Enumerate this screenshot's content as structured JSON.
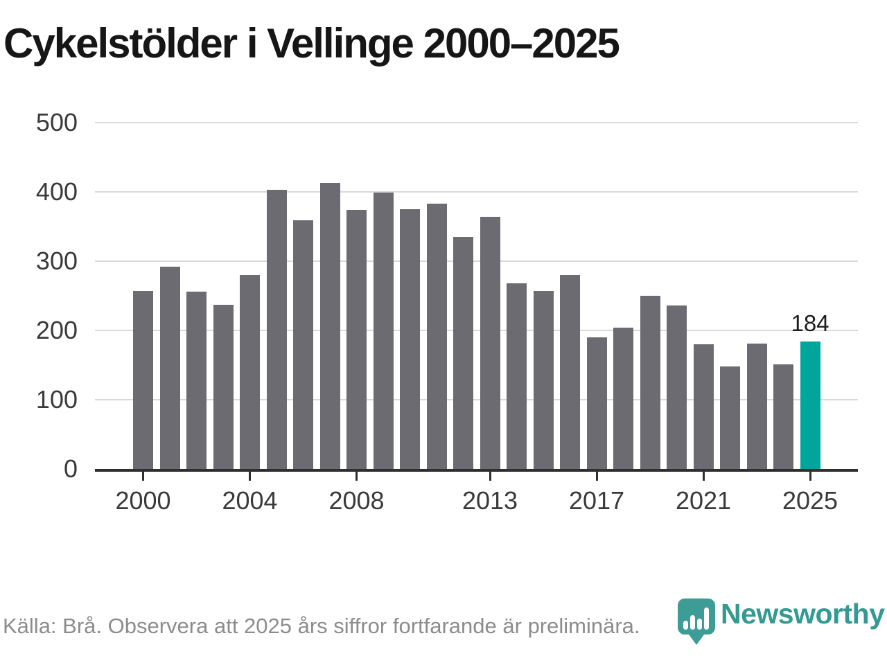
{
  "title": "Cykelstölder i Vellinge 2000–2025",
  "footer": {
    "source_text": "Källa: Brå. Observera att 2025 års siffror fortfarande är preliminära.",
    "logo_text": "Newsworthy"
  },
  "colors": {
    "bar": "#6b6b71",
    "highlight": "#00a59b",
    "grid": "#d9d9d9",
    "axis": "#2f2f2f",
    "tick_label": "#3a3a3a",
    "title": "#161616",
    "value_label": "#1d1d1d",
    "source_text": "#8c8c8c",
    "logo_mark": "#3d9d96",
    "logo_text": "#339a92",
    "background": "#ffffff"
  },
  "chart_data": {
    "type": "bar",
    "title": "Cykelstölder i Vellinge 2000–2025",
    "x": [
      2000,
      2001,
      2002,
      2003,
      2004,
      2005,
      2006,
      2007,
      2008,
      2009,
      2010,
      2011,
      2012,
      2013,
      2014,
      2015,
      2016,
      2017,
      2018,
      2019,
      2020,
      2021,
      2022,
      2023,
      2024,
      2025
    ],
    "values": [
      257,
      292,
      256,
      237,
      280,
      403,
      359,
      413,
      374,
      399,
      375,
      383,
      335,
      364,
      268,
      257,
      280,
      190,
      204,
      250,
      236,
      180,
      148,
      181,
      151,
      184
    ],
    "highlight_index": 25,
    "highlight_label": "184",
    "xlabel": "",
    "ylabel": "",
    "ylim": [
      0,
      500
    ],
    "yticks": [
      0,
      100,
      200,
      300,
      400,
      500
    ],
    "xticks": [
      2000,
      2004,
      2008,
      2013,
      2017,
      2021,
      2025
    ],
    "grid": "horizontal",
    "legend": "none"
  }
}
